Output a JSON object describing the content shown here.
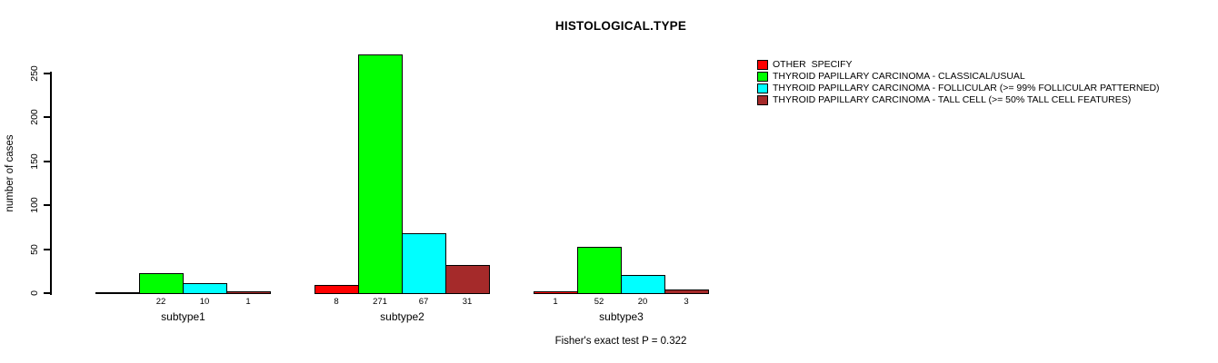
{
  "title": "HISTOLOGICAL.TYPE",
  "footer": "Fisher's exact test P = 0.322",
  "y_axis": {
    "label": "number of cases",
    "ticks": [
      0,
      50,
      100,
      150,
      200,
      250
    ]
  },
  "legend": {
    "position": "top-right",
    "items": [
      {
        "label": "OTHER  SPECIFY",
        "color": "#FF0000"
      },
      {
        "label": "THYROID PAPILLARY CARCINOMA - CLASSICAL/USUAL",
        "color": "#00FF00"
      },
      {
        "label": "THYROID PAPILLARY CARCINOMA - FOLLICULAR (>= 99% FOLLICULAR PATTERNED)",
        "color": "#00FFFF"
      },
      {
        "label": "THYROID PAPILLARY CARCINOMA - TALL CELL (>= 50% TALL CELL FEATURES)",
        "color": "#A52A2A"
      }
    ]
  },
  "chart_data": {
    "type": "bar",
    "title": "HISTOLOGICAL.TYPE",
    "xlabel": "",
    "ylabel": "number of cases",
    "ylim": [
      0,
      250
    ],
    "grid": false,
    "legend_position": "top-right",
    "categories": [
      "subtype1",
      "subtype2",
      "subtype3"
    ],
    "series": [
      {
        "name": "OTHER  SPECIFY",
        "color": "#FF0000",
        "values": [
          null,
          8,
          1
        ]
      },
      {
        "name": "THYROID PAPILLARY CARCINOMA - CLASSICAL/USUAL",
        "color": "#00FF00",
        "values": [
          22,
          271,
          52
        ]
      },
      {
        "name": "THYROID PAPILLARY CARCINOMA - FOLLICULAR (>= 99% FOLLICULAR PATTERNED)",
        "color": "#00FFFF",
        "values": [
          10,
          67,
          20
        ]
      },
      {
        "name": "THYROID PAPILLARY CARCINOMA - TALL CELL (>= 50% TALL CELL FEATURES)",
        "color": "#A52A2A",
        "values": [
          1,
          31,
          3
        ]
      }
    ],
    "annotation": "Fisher's exact test P = 0.322"
  }
}
